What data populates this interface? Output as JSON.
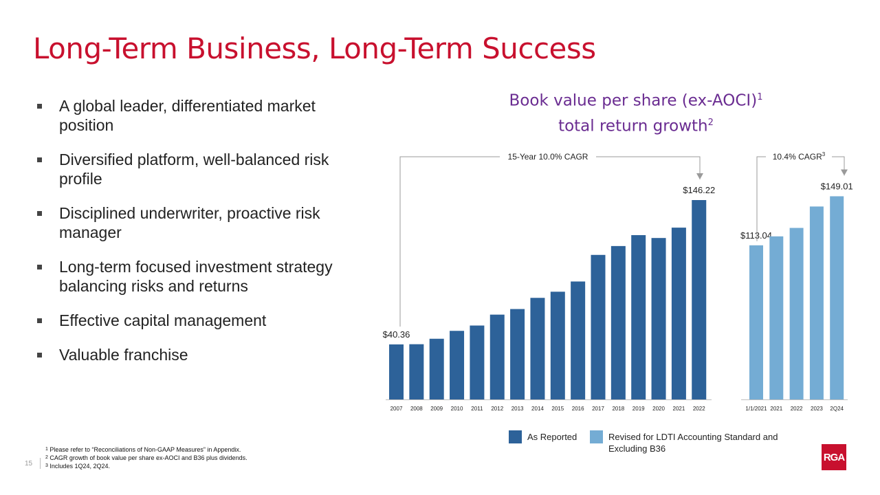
{
  "page": {
    "title": "Long-Term Business, Long-Term Success",
    "page_number": "15",
    "bullets": [
      "A global leader, differentiated market position",
      "Diversified platform, well-balanced risk profile",
      "Disciplined underwriter, proactive risk manager",
      "Long-term focused investment strategy balancing risks and returns",
      "Effective capital management",
      "Valuable franchise"
    ],
    "footnotes": [
      {
        "num": "1",
        "text": "Please refer to “Reconciliations of Non-GAAP Measures” in Appendix."
      },
      {
        "num": "2",
        "text": "CAGR growth of book value per share ex-AOCI and B36 plus dividends."
      },
      {
        "num": "3",
        "text": "Includes 1Q24, 2Q24."
      }
    ],
    "logo_text": "RGA"
  },
  "chart_title": {
    "line1": "Book value per share (ex-AOCI)",
    "line1_sup": "1",
    "line2": "total return growth",
    "line2_sup": "2"
  },
  "legend": {
    "reported": "As Reported",
    "revised": "Revised for LDTI Accounting Standard and Excluding B36"
  },
  "colors": {
    "title": "#c8102e",
    "chart_title": "#6a2c91",
    "reported": "#2d6299",
    "revised": "#74acd4",
    "brand": "#c8102e"
  },
  "chart_data": [
    {
      "type": "bar",
      "series_name": "As Reported",
      "annotation": "15-Year 10.0% CAGR",
      "categories": [
        "2007",
        "2008",
        "2009",
        "2010",
        "2011",
        "2012",
        "2013",
        "2014",
        "2015",
        "2016",
        "2017",
        "2018",
        "2019",
        "2020",
        "2021",
        "2022"
      ],
      "values": [
        40.36,
        40.5,
        44.5,
        50.3,
        54.2,
        62.2,
        66.3,
        74.5,
        79.0,
        86.5,
        106.0,
        112.5,
        120.5,
        118.4,
        126.0,
        146.22
      ],
      "labels": {
        "0": "$40.36",
        "15": "$146.22"
      },
      "ylim": [
        0,
        160
      ]
    },
    {
      "type": "bar",
      "series_name": "Revised for LDTI Accounting Standard and Excluding B36",
      "annotation": "10.4% CAGR",
      "annotation_sup": "3",
      "categories": [
        "1/1/2021",
        "2021",
        "2022",
        "2023",
        "2Q24"
      ],
      "values": [
        113.04,
        119.6,
        125.8,
        141.5,
        149.01
      ],
      "labels": {
        "0": "$113.04",
        "4": "$149.01"
      },
      "ylim": [
        0,
        160
      ]
    }
  ]
}
